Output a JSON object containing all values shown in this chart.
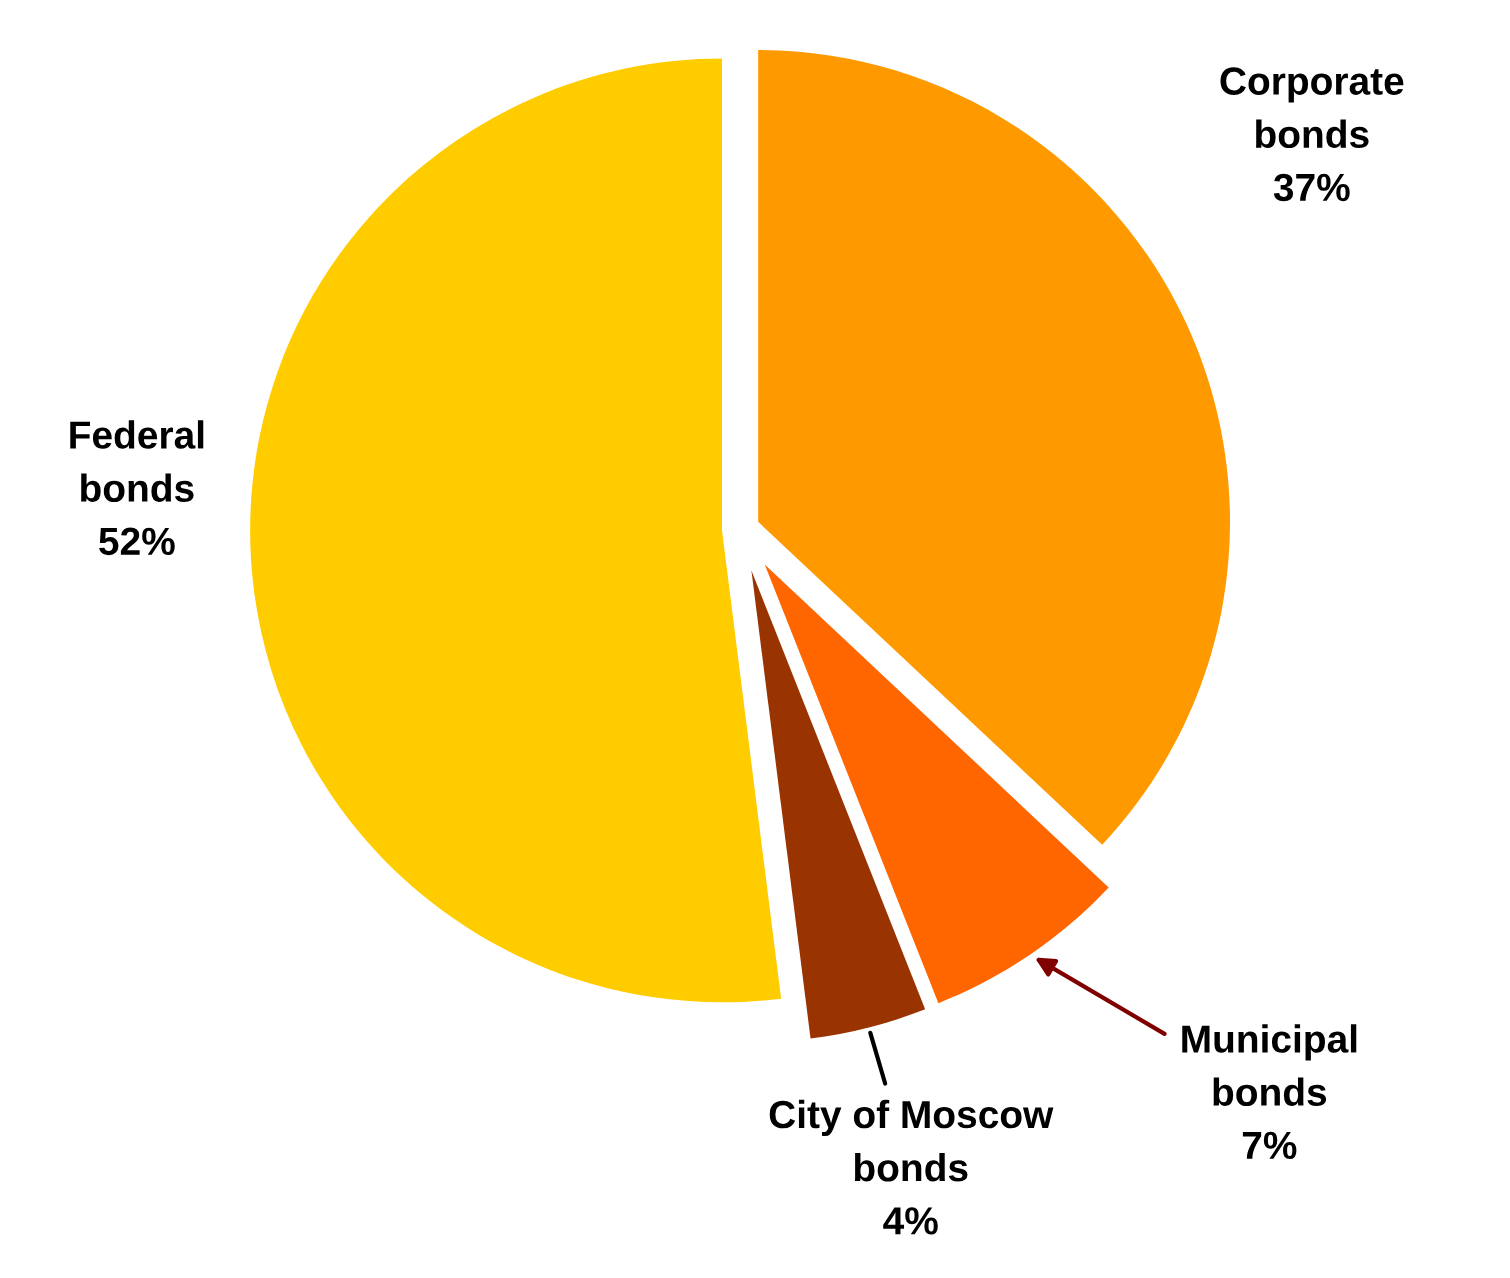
{
  "chart_data": {
    "type": "pie",
    "categories": [
      "Corporate bonds",
      "Municipal bonds",
      "City of Moscow bonds",
      "Federal bonds"
    ],
    "values": [
      37,
      7,
      4,
      52
    ],
    "value_labels": [
      "37%",
      "7%",
      "4%",
      "52%"
    ],
    "colors": [
      "#ff9900",
      "#ff6600",
      "#993300",
      "#ffcc00"
    ],
    "legend": false
  }
}
